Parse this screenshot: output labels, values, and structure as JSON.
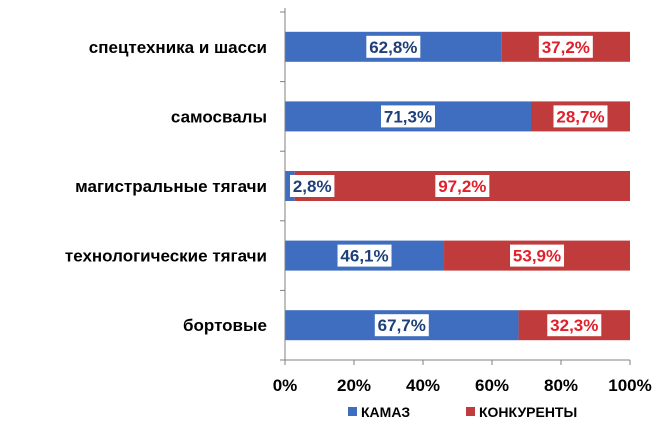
{
  "chart_data": {
    "type": "bar",
    "orientation": "horizontal",
    "stacked": true,
    "percent": true,
    "categories": [
      "спецтехника и шасси",
      "самосвалы",
      "магистральные тягачи",
      "технологические тягачи",
      "бортовые"
    ],
    "series": [
      {
        "name": "КАМАЗ",
        "color": "#3f6dbf",
        "label_color": "#1f3f78",
        "values": [
          62.8,
          71.3,
          2.8,
          46.1,
          67.7
        ],
        "labels": [
          "62,8%",
          "71,3%",
          "2,8%",
          "46,1%",
          "67,7%"
        ]
      },
      {
        "name": "КОНКУРЕНТЫ",
        "color": "#c03b3b",
        "label_color": "#e0202a",
        "values": [
          37.2,
          28.7,
          97.2,
          53.9,
          32.3
        ],
        "labels": [
          "37,2%",
          "28,7%",
          "97,2%",
          "53,9%",
          "32,3%"
        ]
      }
    ],
    "xlim": [
      0,
      100
    ],
    "xticks": [
      0,
      20,
      40,
      60,
      80,
      100
    ],
    "xtick_labels": [
      "0%",
      "20%",
      "40%",
      "60%",
      "80%",
      "100%"
    ],
    "title": "",
    "xlabel": "",
    "ylabel": "",
    "grid": false,
    "legend_position": "bottom"
  }
}
